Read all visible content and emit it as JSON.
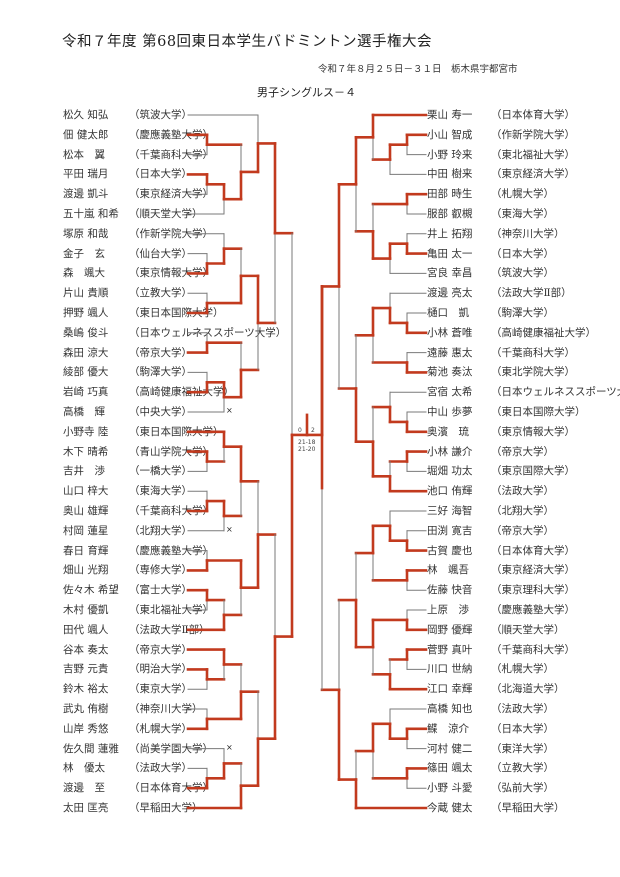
{
  "header": {
    "title": "令和７年度 第68回東日本学生バドミントン選手権大会",
    "dateline": "令和７年８月２５日－３１日　栃木県宇都宮市",
    "event": "男子シングルス－４"
  },
  "colors": {
    "winner_line": "#c23a1e",
    "line": "#7a7a7a"
  },
  "left_players": [
    {
      "name": "松久 知弘",
      "school": "（筑波大学）"
    },
    {
      "name": "佃 健太郎",
      "school": "（慶應義塾大学）"
    },
    {
      "name": "松本　翼",
      "school": "（千葉商科大学）"
    },
    {
      "name": "平田 瑞月",
      "school": "（日本大学）"
    },
    {
      "name": "渡邊 凱斗",
      "school": "（東京経済大学）"
    },
    {
      "name": "五十嵐 和希",
      "school": "（順天堂大学）"
    },
    {
      "name": "塚原 和哉",
      "school": "（作新学院大学）"
    },
    {
      "name": "金子　玄",
      "school": "（仙台大学）"
    },
    {
      "name": "森　颯大",
      "school": "（東京情報大学）"
    },
    {
      "name": "片山 貴順",
      "school": "（立教大学）"
    },
    {
      "name": "押野 颯人",
      "school": "（東日本国際大学）"
    },
    {
      "name": "桑嶋 俊斗",
      "school": "（日本ウェルネススポーツ大学）"
    },
    {
      "name": "森田 涼大",
      "school": "（帝京大学）"
    },
    {
      "name": "綾部 優大",
      "school": "（駒澤大学）"
    },
    {
      "name": "岩崎 巧真",
      "school": "（高崎健康福祉大学）"
    },
    {
      "name": "高橋　輝",
      "school": "（中央大学）"
    },
    {
      "name": "小野寺 陸",
      "school": "（東日本国際大学）"
    },
    {
      "name": "木下 晴希",
      "school": "（青山学院大学）"
    },
    {
      "name": "吉井　渉",
      "school": "（一橋大学）"
    },
    {
      "name": "山口 梓大",
      "school": "（東海大学）"
    },
    {
      "name": "奥山 雄輝",
      "school": "（千葉商科大学）"
    },
    {
      "name": "村岡 蓮星",
      "school": "（北翔大学）"
    },
    {
      "name": "春日 育輝",
      "school": "（慶應義塾大学）"
    },
    {
      "name": "畑山 光翔",
      "school": "（専修大学）"
    },
    {
      "name": "佐々木 希望",
      "school": "（富士大学）"
    },
    {
      "name": "木村 優凱",
      "school": "（東北福祉大学）"
    },
    {
      "name": "田代 颯人",
      "school": "（法政大学Ⅱ部）"
    },
    {
      "name": "谷本 奏太",
      "school": "（帝京大学）"
    },
    {
      "name": "吉野 元貴",
      "school": "（明治大学）"
    },
    {
      "name": "鈴木 裕太",
      "school": "（東京大学）"
    },
    {
      "name": "武丸 侑樹",
      "school": "（神奈川大学）"
    },
    {
      "name": "山岸 秀悠",
      "school": "（札幌大学）"
    },
    {
      "name": "佐久間 蓮雅",
      "school": "（尚美学園大学）"
    },
    {
      "name": "林　優太",
      "school": "（法政大学）"
    },
    {
      "name": "渡邊　至",
      "school": "（日本体育大学）"
    },
    {
      "name": "太田 匡亮",
      "school": "（早稲田大学）"
    }
  ],
  "right_players": [
    {
      "name": "栗山 寿一",
      "school": "（日本体育大学）"
    },
    {
      "name": "小山 智成",
      "school": "（作新学院大学）"
    },
    {
      "name": "小野 玲来",
      "school": "（東北福祉大学）"
    },
    {
      "name": "中田 樹来",
      "school": "（東京経済大学）"
    },
    {
      "name": "田部 時生",
      "school": "（札幌大学）"
    },
    {
      "name": "服部 叡槻",
      "school": "（東海大学）"
    },
    {
      "name": "井上 拓翔",
      "school": "（神奈川大学）"
    },
    {
      "name": "亀田 太一",
      "school": "（日本大学）"
    },
    {
      "name": "宮良 幸昌",
      "school": "（筑波大学）"
    },
    {
      "name": "渡邊 亮太",
      "school": "（法政大学Ⅱ部）"
    },
    {
      "name": "樋口　凱",
      "school": "（駒澤大学）"
    },
    {
      "name": "小林 蒼唯",
      "school": "（高崎健康福祉大学）"
    },
    {
      "name": "遠藤 惠太",
      "school": "（千葉商科大学）"
    },
    {
      "name": "菊池 奏汰",
      "school": "（東北学院大学）"
    },
    {
      "name": "宮宿 太希",
      "school": "（日本ウェルネススポーツ大学）"
    },
    {
      "name": "中山 歩夢",
      "school": "（東日本国際大学）"
    },
    {
      "name": "奥濱　琉",
      "school": "（東京情報大学）"
    },
    {
      "name": "小林 謙介",
      "school": "（帝京大学）"
    },
    {
      "name": "堀畑 功太",
      "school": "（東京国際大学）"
    },
    {
      "name": "池口 侑輝",
      "school": "（法政大学）"
    },
    {
      "name": "三好 海智",
      "school": "（北翔大学）"
    },
    {
      "name": "田渕 寛吉",
      "school": "（帝京大学）"
    },
    {
      "name": "古賀 慶也",
      "school": "（日本体育大学）"
    },
    {
      "name": "林　颯吾",
      "school": "（東京経済大学）"
    },
    {
      "name": "佐藤 快音",
      "school": "（東京理科大学）"
    },
    {
      "name": "上原　渉",
      "school": "（慶應義塾大学）"
    },
    {
      "name": "岡野 優輝",
      "school": "（順天堂大学）"
    },
    {
      "name": "菅野 真叶",
      "school": "（千葉商科大学）"
    },
    {
      "name": "川口 世納",
      "school": "（札幌大学）"
    },
    {
      "name": "江口 幸輝",
      "school": "（北海道大学）"
    },
    {
      "name": "高橋 知也",
      "school": "（法政大学）"
    },
    {
      "name": "鰈　涼介",
      "school": "（日本大学）"
    },
    {
      "name": "河村 健二",
      "school": "（東洋大学）"
    },
    {
      "name": "篠田 颯太",
      "school": "（立教大学）"
    },
    {
      "name": "小野 斗愛",
      "school": "（弘前大学）"
    },
    {
      "name": "今蔵 健太",
      "school": "（早稲田大学）"
    }
  ],
  "left_walkovers": [
    15,
    21,
    32
  ],
  "walkover_mark": "×",
  "left_bracket": {
    "m": [
      {
        "m": [
          {
            "m": [
              0,
              {
                "m": [
                  {
                    "m": [
                      1,
                      2
                    ],
                    "w": 0
                  },
                  {
                    "m": [
                      {
                        "m": [
                          3,
                          4
                        ],
                        "w": 0
                      },
                      5
                    ],
                    "w": 0
                  }
                ],
                "w": 1
              }
            ],
            "w": 1
          },
          {
            "m": [
              {
                "m": [
                  {
                    "m": [
                      6,
                      {
                        "m": [
                          7,
                          8
                        ],
                        "w": 1
                      }
                    ],
                    "w": 1
                  },
                  {
                    "m": [
                      9,
                      10
                    ],
                    "w": 1
                  }
                ],
                "w": 1
              },
              {
                "m": [
                  {
                    "m": [
                      11,
                      12
                    ],
                    "w": 1
                  },
                  {
                    "m": [
                      {
                        "m": [
                          13,
                          14
                        ],
                        "w": 1
                      },
                      15
                    ],
                    "w": 0
                  }
                ],
                "w": 1
              }
            ],
            "w": 0
          }
        ],
        "w": 0
      },
      {
        "m": [
          {
            "m": [
              {
                "m": [
                  {
                    "m": [
                      16,
                      {
                        "m": [
                          17,
                          18
                        ],
                        "w": 0
                      }
                    ],
                    "w": 0
                  },
                  {
                    "m": [
                      {
                        "m": [
                          19,
                          20
                        ],
                        "w": 1
                      },
                      21
                    ],
                    "w": 0
                  }
                ],
                "w": 0
              },
              {
                "m": [
                  {
                    "m": [
                      22,
                      23
                    ],
                    "w": 1
                  },
                  {
                    "m": [
                      {
                        "m": [
                          24,
                          25
                        ],
                        "w": 0
                      },
                      26
                    ],
                    "w": 1
                  }
                ],
                "w": 0
              }
            ],
            "w": 1
          },
          {
            "m": [
              {
                "m": [
                  {
                    "m": [
                      27,
                      {
                        "m": [
                          28,
                          29
                        ],
                        "w": 0
                      }
                    ],
                    "w": 0
                  },
                  {
                    "m": [
                      30,
                      31
                    ],
                    "w": 1
                  }
                ],
                "w": 1
              },
              {
                "m": [
                  {
                    "m": [
                      32,
                      {
                        "m": [
                          33,
                          34
                        ],
                        "w": 1
                      }
                    ],
                    "w": 1
                  },
                  35
                ],
                "w": 1
              }
            ],
            "w": 1
          }
        ],
        "w": 1
      }
    ],
    "w": 1
  },
  "right_bracket": {
    "m": [
      {
        "m": [
          {
            "m": [
              {
                "m": [
                  0,
                  {
                    "m": [
                      {
                        "m": [
                          1,
                          2
                        ],
                        "w": 0
                      },
                      3
                    ],
                    "w": 0
                  }
                ],
                "w": 0
              },
              {
                "m": [
                  {
                    "m": [
                      4,
                      5
                    ],
                    "w": 0
                  },
                  {
                    "m": [
                      {
                        "m": [
                          6,
                          7
                        ],
                        "w": 1
                      },
                      8
                    ],
                    "w": 0
                  }
                ],
                "w": 1
              }
            ],
            "w": 0
          },
          {
            "m": [
              {
                "m": [
                  {
                    "m": [
                      9,
                      {
                        "m": [
                          10,
                          11
                        ],
                        "w": 1
                      }
                    ],
                    "w": 1
                  },
                  {
                    "m": [
                      12,
                      13
                    ],
                    "w": 1
                  }
                ],
                "w": 0
              },
              {
                "m": [
                  {
                    "m": [
                      14,
                      {
                        "m": [
                          15,
                          16
                        ],
                        "w": 1
                      }
                    ],
                    "w": 1
                  },
                  {
                    "m": [
                      {
                        "m": [
                          17,
                          18
                        ],
                        "w": 0
                      },
                      19
                    ],
                    "w": 1
                  }
                ],
                "w": 1
              }
            ],
            "w": 1
          }
        ],
        "w": 0
      },
      {
        "m": [
          {
            "m": [
              {
                "m": [
                  {
                    "m": [
                      20,
                      {
                        "m": [
                          21,
                          22
                        ],
                        "w": 1
                      }
                    ],
                    "w": 1
                  },
                  {
                    "m": [
                      23,
                      24
                    ],
                    "w": 0
                  }
                ],
                "w": 0
              },
              {
                "m": [
                  {
                    "m": [
                      25,
                      26
                    ],
                    "w": 1
                  },
                  {
                    "m": [
                      {
                        "m": [
                          27,
                          28
                        ],
                        "w": 0
                      },
                      29
                    ],
                    "w": 1
                  }
                ],
                "w": 0
              }
            ],
            "w": 1
          },
          {
            "m": [
              {
                "m": [
                  {
                    "m": [
                      30,
                      {
                        "m": [
                          31,
                          32
                        ],
                        "w": 0
                      }
                    ],
                    "w": 1
                  },
                  {
                    "m": [
                      33,
                      34
                    ],
                    "w": 0
                  }
                ],
                "w": 0
              },
              35
            ],
            "w": 1
          }
        ],
        "w": 1
      }
    ],
    "w": 0
  },
  "final": {
    "left_games": "0",
    "right_games": "2",
    "scores": [
      "21-18",
      "21-20"
    ],
    "winner": "right"
  }
}
